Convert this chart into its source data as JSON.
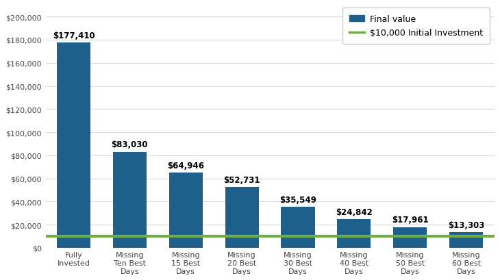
{
  "categories": [
    "Fully\nInvested",
    "Missing\nTen Best\nDays",
    "Missing\n15 Best\nDays",
    "Missing\n20 Best\nDays",
    "Missing\n30 Best\nDays",
    "Missing\n40 Best\nDays",
    "Missing\n50 Best\nDays",
    "Missing\n60 Best\nDays"
  ],
  "values": [
    177410,
    83030,
    64946,
    52731,
    35549,
    24842,
    17961,
    13303
  ],
  "labels": [
    "$177,410",
    "$83,030",
    "$64,946",
    "$52,731",
    "$35,549",
    "$24,842",
    "$17,961",
    "$13,303"
  ],
  "bar_color": "#1F5F8B",
  "line_value": 10000,
  "line_color": "#70AD47",
  "line_label": "$10,000 Initial Investment",
  "bar_legend_label": "Final value",
  "ylim": [
    0,
    210000
  ],
  "yticks": [
    0,
    20000,
    40000,
    60000,
    80000,
    100000,
    120000,
    140000,
    160000,
    180000,
    200000
  ],
  "plot_bg_color": "#FFFFFF",
  "fig_bg_color": "#FFFFFF",
  "grid_color": "#D9D9D9",
  "label_fontsize": 8.5,
  "tick_fontsize": 8.0,
  "legend_fontsize": 9.0
}
